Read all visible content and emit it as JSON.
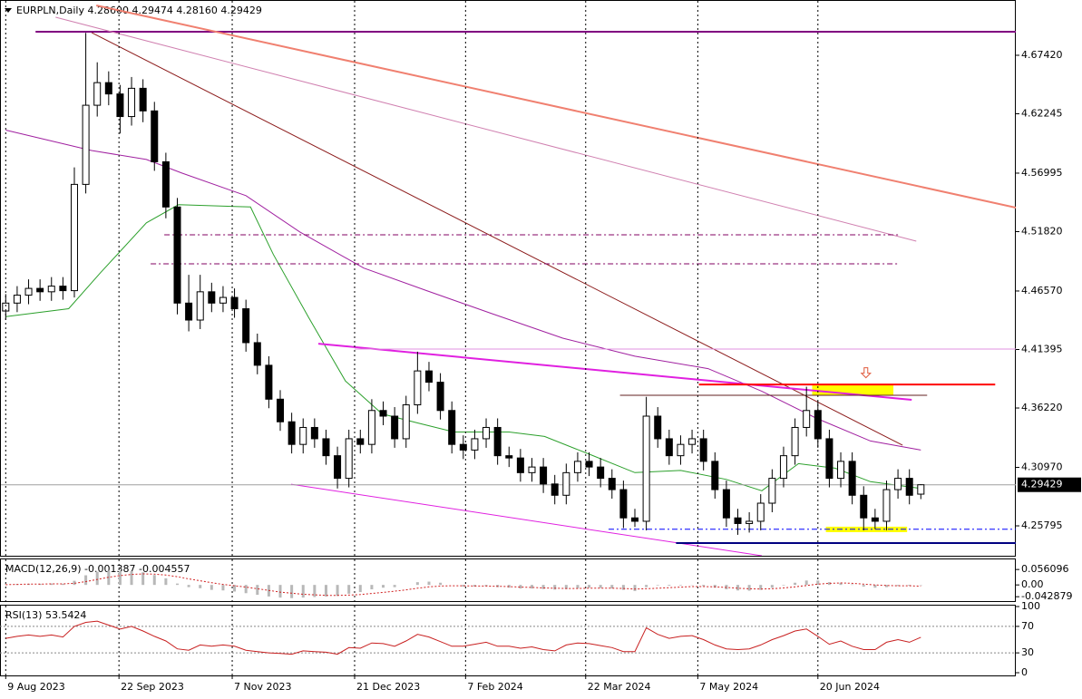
{
  "chart_data": [
    {
      "type": "candlestick",
      "title": "EURPLN,Daily  4.28600 4.29474 4.28160 4.29429",
      "xlim": [
        -0.5,
        88.3
      ],
      "ylim": [
        4.2315,
        4.7223
      ],
      "yticks": [
        {
          "value": 4.6742,
          "label": "4.67420"
        },
        4.62245,
        4.56995,
        {
          "value": 4.5182,
          "label": "4.51820"
        },
        {
          "value": 4.4657,
          "label": "4.46570"
        },
        4.41395,
        {
          "value": 4.3622,
          "label": "4.36220"
        },
        {
          "value": 4.3097,
          "label": "4.30970"
        },
        4.25795
      ],
      "open": [
        4.448,
        4.455,
        4.462,
        4.468,
        4.465,
        4.47,
        4.466,
        4.56,
        4.63,
        4.65,
        4.64,
        4.62,
        4.645,
        4.625,
        4.58,
        4.54,
        4.455,
        4.44,
        4.465,
        4.455,
        4.46,
        4.45,
        4.42,
        4.4,
        4.37,
        4.35,
        4.33,
        4.345,
        4.335,
        4.32,
        4.3,
        4.335,
        4.33,
        4.36,
        4.355,
        4.335,
        4.365,
        4.395,
        4.385,
        4.36,
        4.33,
        4.325,
        4.335,
        4.345,
        4.32,
        4.318,
        4.305,
        4.31,
        4.295,
        4.285,
        4.305,
        4.315,
        4.31,
        4.3,
        4.29,
        4.265,
        4.262,
        4.355,
        4.335,
        4.32,
        4.33,
        4.335,
        4.315,
        4.29,
        4.265,
        4.26,
        4.262,
        4.278,
        4.3,
        4.32,
        4.345,
        4.36,
        4.335,
        4.3,
        4.315,
        4.285,
        4.265,
        4.262,
        4.29,
        4.3,
        4.286
      ],
      "high": [
        4.463,
        4.47,
        4.476,
        4.476,
        4.478,
        4.478,
        4.575,
        4.694,
        4.668,
        4.66,
        4.648,
        4.655,
        4.653,
        4.633,
        4.588,
        4.548,
        4.48,
        4.48,
        4.473,
        4.47,
        4.468,
        4.458,
        4.428,
        4.408,
        4.378,
        4.358,
        4.353,
        4.353,
        4.343,
        4.328,
        4.343,
        4.343,
        4.37,
        4.368,
        4.363,
        4.373,
        4.412,
        4.403,
        4.393,
        4.368,
        4.338,
        4.343,
        4.353,
        4.353,
        4.328,
        4.326,
        4.318,
        4.318,
        4.303,
        4.313,
        4.323,
        4.323,
        4.318,
        4.308,
        4.298,
        4.273,
        4.372,
        4.363,
        4.343,
        4.338,
        4.343,
        4.343,
        4.323,
        4.298,
        4.273,
        4.27,
        4.286,
        4.308,
        4.328,
        4.353,
        4.381,
        4.368,
        4.343,
        4.323,
        4.323,
        4.293,
        4.273,
        4.298,
        4.308,
        4.308,
        4.29474
      ],
      "low": [
        4.44,
        4.447,
        4.454,
        4.457,
        4.457,
        4.458,
        4.46,
        4.552,
        4.62,
        4.63,
        4.605,
        4.612,
        4.615,
        4.572,
        4.53,
        4.445,
        4.43,
        4.432,
        4.447,
        4.447,
        4.442,
        4.412,
        4.392,
        4.362,
        4.342,
        4.322,
        4.322,
        4.327,
        4.312,
        4.291,
        4.292,
        4.322,
        4.322,
        4.347,
        4.327,
        4.327,
        4.357,
        4.377,
        4.352,
        4.322,
        4.317,
        4.317,
        4.327,
        4.312,
        4.31,
        4.297,
        4.297,
        4.287,
        4.277,
        4.277,
        4.297,
        4.302,
        4.292,
        4.282,
        4.256,
        4.257,
        4.254,
        4.327,
        4.312,
        4.312,
        4.322,
        4.307,
        4.282,
        4.257,
        4.25,
        4.252,
        4.254,
        4.27,
        4.292,
        4.312,
        4.337,
        4.327,
        4.292,
        4.292,
        4.277,
        4.254,
        4.255,
        4.254,
        4.282,
        4.277,
        4.2816
      ],
      "close": [
        4.455,
        4.462,
        4.468,
        4.465,
        4.47,
        4.466,
        4.56,
        4.63,
        4.65,
        4.64,
        4.62,
        4.645,
        4.625,
        4.58,
        4.54,
        4.455,
        4.44,
        4.465,
        4.455,
        4.46,
        4.45,
        4.42,
        4.4,
        4.37,
        4.35,
        4.33,
        4.345,
        4.335,
        4.32,
        4.3,
        4.335,
        4.33,
        4.36,
        4.355,
        4.335,
        4.365,
        4.395,
        4.385,
        4.36,
        4.33,
        4.325,
        4.335,
        4.345,
        4.32,
        4.318,
        4.305,
        4.31,
        4.295,
        4.285,
        4.305,
        4.315,
        4.31,
        4.3,
        4.29,
        4.265,
        4.262,
        4.355,
        4.335,
        4.32,
        4.33,
        4.335,
        4.315,
        4.29,
        4.265,
        4.26,
        4.262,
        4.278,
        4.3,
        4.32,
        4.345,
        4.36,
        4.335,
        4.3,
        4.315,
        4.285,
        4.265,
        4.262,
        4.29,
        4.3,
        4.285,
        4.29429
      ],
      "moving_averages": [
        {
          "color": "#2ca02c",
          "x": [
            0,
            5.5,
            8.3,
            12.3,
            15.1,
            21.4,
            23.4,
            26.5,
            29.7,
            32.9,
            36,
            39.2,
            44,
            47.1,
            51.1,
            55,
            59,
            63,
            66.1,
            69.3,
            72.5,
            75.6,
            80
          ],
          "values": [
            4.443,
            4.45,
            4.482,
            4.526,
            4.542,
            4.54,
            4.498,
            4.442,
            4.386,
            4.357,
            4.349,
            4.341,
            4.341,
            4.337,
            4.321,
            4.305,
            4.307,
            4.299,
            4.289,
            4.313,
            4.309,
            4.297,
            4.291
          ]
        },
        {
          "color": "#a020a0",
          "x": [
            0,
            7.5,
            12.3,
            15.4,
            21,
            25.7,
            31.3,
            36.8,
            42.4,
            48.7,
            55,
            61.4,
            66.1,
            70.9,
            75.6,
            80
          ],
          "values": [
            4.608,
            4.59,
            4.582,
            4.57,
            4.55,
            4.518,
            4.486,
            4.466,
            4.446,
            4.424,
            4.408,
            4.397,
            4.377,
            4.353,
            4.333,
            4.325
          ]
        }
      ],
      "objects": [
        {
          "color": "#800080",
          "width": 2,
          "dash": false,
          "x": [
            2.61,
            88.3
          ],
          "y": [
            4.695,
            4.695
          ]
        },
        {
          "color": "#f08070",
          "width": 2,
          "dash": false,
          "x": [
            7.92,
            88.3
          ],
          "y": [
            4.7183,
            4.5394
          ]
        },
        {
          "color": "#d080b0",
          "width": 1,
          "dash": false,
          "x": [
            4.36,
            79.6
          ],
          "y": [
            4.7079,
            4.5098
          ]
        },
        {
          "color": "#8b1a1a",
          "width": 1,
          "dash": false,
          "x": [
            7.52,
            78.4
          ],
          "y": [
            4.6942,
            4.3293
          ]
        },
        {
          "color": "#800060",
          "width": 1,
          "dash": true,
          "x": [
            13.86,
            78.0
          ],
          "y": [
            4.5154,
            4.5154
          ]
        },
        {
          "color": "#800060",
          "width": 1,
          "dash": true,
          "x": [
            12.67,
            78.0
          ],
          "y": [
            4.4897,
            4.4897
          ]
        },
        {
          "color": "#e020e0",
          "width": 2,
          "dash": false,
          "x": [
            27.33,
            79.2
          ],
          "y": [
            4.4191,
            4.3694
          ]
        },
        {
          "color": "#e020e0",
          "width": 1,
          "dash": false,
          "x": [
            24.95,
            66.1
          ],
          "y": [
            4.2948,
            4.2315
          ]
        },
        {
          "color": "#e090e0",
          "width": 1,
          "dash": false,
          "x": [
            30.5,
            88.3
          ],
          "y": [
            4.4143,
            4.4143
          ]
        },
        {
          "color": "#602020",
          "width": 1,
          "dash": false,
          "x": [
            53.7,
            80.55
          ],
          "y": [
            4.3734,
            4.3734
          ]
        },
        {
          "color": "#ff0000",
          "width": 2,
          "dash": false,
          "x": [
            60.6,
            86.5
          ],
          "y": [
            4.383,
            4.383
          ]
        },
        {
          "color": "#0000ff",
          "width": 1,
          "dash": true,
          "x": [
            52.7,
            88.3
          ],
          "y": [
            4.255,
            4.255
          ]
        },
        {
          "color": "#000080",
          "width": 2,
          "dash": false,
          "x": [
            58.6,
            88.3
          ],
          "y": [
            4.2427,
            4.2427
          ]
        }
      ],
      "boxes": [
        {
          "color": "#ffff00",
          "x": [
            70.5,
            77.6
          ],
          "y": [
            4.383,
            4.3734
          ]
        },
        {
          "color": "#ffff00",
          "x": [
            71.7,
            78.8
          ],
          "y": [
            4.2572,
            4.2524
          ]
        }
      ],
      "arrow": {
        "color": "#e05a3c",
        "x": 75.2,
        "y": 4.393
      }
    },
    {
      "type": "macd",
      "title": "MACD(12,26,9) -0.001387 -0.004557",
      "xlim": [
        -0.5,
        88.3
      ],
      "ylim": [
        -0.0588,
        0.0929
      ],
      "yticks": [
        0.056096,
        {
          "value": 0,
          "label": "0.00"
        },
        -0.042879
      ],
      "hist_color": "#b8b8b8",
      "signal_color": "#d02020",
      "values": [
        0.002,
        0.003,
        0.004,
        0.004,
        0.005,
        0.004,
        0.015,
        0.035,
        0.048,
        0.052,
        0.05,
        0.05,
        0.046,
        0.036,
        0.024,
        0.005,
        -0.008,
        -0.012,
        -0.018,
        -0.02,
        -0.024,
        -0.03,
        -0.036,
        -0.042,
        -0.046,
        -0.048,
        -0.046,
        -0.044,
        -0.042,
        -0.04,
        -0.032,
        -0.026,
        -0.016,
        -0.01,
        -0.008,
        0.0,
        0.01,
        0.012,
        0.008,
        0.0,
        -0.006,
        -0.006,
        -0.004,
        -0.008,
        -0.01,
        -0.013,
        -0.013,
        -0.015,
        -0.017,
        -0.015,
        -0.012,
        -0.01,
        -0.011,
        -0.013,
        -0.018,
        -0.022,
        -0.008,
        -0.002,
        -0.003,
        -0.002,
        -0.001,
        -0.004,
        -0.01,
        -0.016,
        -0.02,
        -0.021,
        -0.018,
        -0.01,
        -0.002,
        0.008,
        0.016,
        0.016,
        0.01,
        0.008,
        0.002,
        -0.006,
        -0.01,
        -0.008,
        -0.004,
        -0.003,
        -0.001387
      ],
      "signal": [
        0.001,
        0.002,
        0.003,
        0.003,
        0.004,
        0.004,
        0.006,
        0.012,
        0.02,
        0.028,
        0.034,
        0.038,
        0.04,
        0.039,
        0.036,
        0.03,
        0.022,
        0.015,
        0.008,
        0.002,
        -0.003,
        -0.008,
        -0.014,
        -0.02,
        -0.026,
        -0.03,
        -0.034,
        -0.036,
        -0.038,
        -0.038,
        -0.037,
        -0.035,
        -0.031,
        -0.027,
        -0.023,
        -0.018,
        -0.012,
        -0.007,
        -0.004,
        -0.003,
        -0.003,
        -0.004,
        -0.004,
        -0.005,
        -0.006,
        -0.008,
        -0.009,
        -0.011,
        -0.012,
        -0.013,
        -0.013,
        -0.012,
        -0.012,
        -0.012,
        -0.013,
        -0.015,
        -0.014,
        -0.012,
        -0.01,
        -0.008,
        -0.006,
        -0.006,
        -0.007,
        -0.009,
        -0.012,
        -0.014,
        -0.015,
        -0.014,
        -0.011,
        -0.007,
        -0.002,
        0.003,
        0.006,
        0.007,
        0.006,
        0.003,
        0.0,
        -0.002,
        -0.003,
        -0.003,
        -0.004557
      ]
    },
    {
      "type": "line",
      "title": "RSI(13) 53.5424",
      "xlim": [
        -0.5,
        88.3
      ],
      "ylim": [
        -4.1,
        101.4
      ],
      "color": "#c82020",
      "yticks": [
        100,
        70,
        30,
        0
      ],
      "levels": [
        70,
        30
      ],
      "values": [
        52,
        55,
        57,
        55,
        57,
        54,
        70,
        76,
        78,
        72,
        66,
        70,
        63,
        55,
        48,
        36,
        34,
        42,
        40,
        42,
        40,
        34,
        32,
        30,
        29,
        28,
        33,
        32,
        31,
        28,
        38,
        37,
        45,
        44,
        40,
        48,
        58,
        54,
        47,
        40,
        40,
        43,
        46,
        40,
        40,
        37,
        39,
        35,
        33,
        42,
        45,
        44,
        41,
        38,
        32,
        32,
        68,
        58,
        52,
        55,
        56,
        50,
        42,
        36,
        35,
        36,
        42,
        50,
        56,
        63,
        66,
        55,
        43,
        48,
        40,
        35,
        35,
        46,
        50,
        46,
        53.5424
      ],
      "xticks": [
        {
          "value": 0,
          "label": "9 Aug 2023"
        },
        {
          "value": 9.9,
          "label": "22 Sep 2023"
        },
        {
          "value": 19.8,
          "label": "7 Nov 2023"
        },
        {
          "value": 30.5,
          "label": "21 Dec 2023"
        },
        {
          "value": 40.2,
          "label": "7 Feb 2024"
        },
        {
          "value": 50.7,
          "label": "22 Mar 2024"
        },
        {
          "value": 60.5,
          "label": "7 May 2024"
        },
        {
          "value": 71,
          "label": "20 Jun 2024"
        }
      ]
    }
  ]
}
